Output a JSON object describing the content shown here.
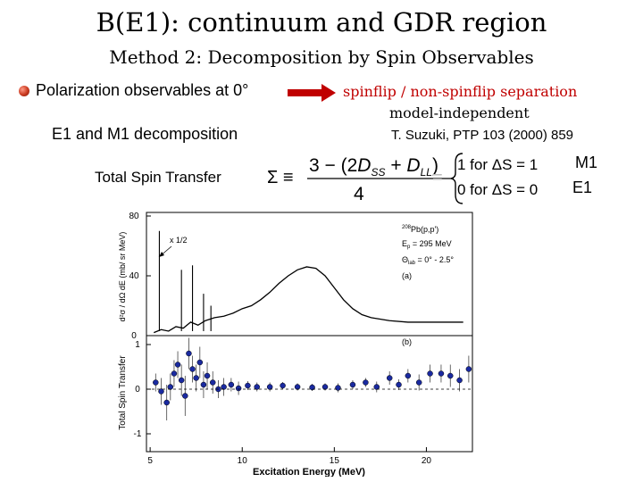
{
  "title": "B(E1): continuum and GDR region",
  "subtitle": "Method 2: Decomposition by Spin Observables",
  "bullet_text": "Polarization observables at 0°",
  "decomposition_text": "E1 and M1 decomposition",
  "separation_text": "spinflip / non-spinflip separation",
  "model_text": "model-independent",
  "reference": "T. Suzuki, PTP 103 (2000) 859",
  "formula": {
    "label": "Total Spin Transfer",
    "sigma": "Σ ≡",
    "numerator_prefix": "3 − (2",
    "dss": "D",
    "dss_sub": "SS",
    "plus": " + ",
    "dll": "D",
    "dll_sub": "LL",
    "numerator_suffix": ")",
    "denominator": "4",
    "equals": "=",
    "case1": "1 for ΔS = 1",
    "case2": "0 for ΔS = 0",
    "case1_label": "M1",
    "case2_label": "E1"
  },
  "plot": {
    "scale_note": "x 1/2",
    "legend_reaction_sup": "208",
    "legend_reaction": "Pb(p,p')",
    "legend_ep": "E",
    "legend_ep_sub": "p",
    "legend_ep_val": " = 295 MeV",
    "legend_theta": "Θ",
    "legend_theta_sub": "lab",
    "legend_theta_val": " = 0° - 2.5°",
    "panel_a": "(a)",
    "panel_b": "(b)",
    "xlabel": "Excitation Energy (MeV)",
    "ylabel_top": "d²σ / dΩ dE (mb/ sr MeV)",
    "ylabel_bottom": "Total Spin Transfer",
    "xticks": [
      "5",
      "10",
      "15",
      "20"
    ],
    "yticks_top": [
      "80",
      "40",
      "0"
    ],
    "yticks_bottom": [
      "1",
      "0",
      "-1"
    ],
    "cross_section": {
      "x": [
        5.2,
        5.6,
        6.0,
        6.4,
        6.8,
        7.2,
        7.6,
        8.0,
        8.5,
        9.0,
        9.5,
        10.0,
        10.5,
        11.0,
        11.5,
        12.0,
        12.5,
        13.0,
        13.5,
        14.0,
        14.5,
        15.0,
        15.5,
        16.0,
        16.5,
        17.0,
        18.0,
        19.0,
        20.0,
        21.0,
        22.0
      ],
      "y": [
        2,
        4,
        3,
        6,
        5,
        9,
        7,
        10,
        12,
        13,
        15,
        18,
        20,
        24,
        29,
        35,
        40,
        44,
        46,
        45,
        40,
        32,
        24,
        18,
        14,
        12,
        10,
        9,
        9,
        9,
        9
      ],
      "peaks": [
        {
          "x": 5.5,
          "y": 70
        },
        {
          "x": 6.7,
          "y": 44
        },
        {
          "x": 7.3,
          "y": 47
        },
        {
          "x": 7.9,
          "y": 28
        },
        {
          "x": 8.3,
          "y": 20
        }
      ],
      "xlim": [
        4.8,
        22.5
      ],
      "ylim": [
        0,
        80
      ]
    },
    "spin_transfer": {
      "x": [
        5.3,
        5.6,
        5.9,
        6.1,
        6.3,
        6.5,
        6.7,
        6.9,
        7.1,
        7.3,
        7.5,
        7.7,
        7.9,
        8.1,
        8.4,
        8.7,
        9.0,
        9.4,
        9.8,
        10.3,
        10.8,
        11.5,
        12.2,
        13.0,
        13.8,
        14.5,
        15.2,
        16.0,
        16.7,
        17.3,
        18.0,
        18.5,
        19.0,
        19.6,
        20.2,
        20.8,
        21.3,
        21.8,
        22.3
      ],
      "y": [
        0.15,
        -0.05,
        -0.3,
        0.05,
        0.35,
        0.55,
        0.2,
        -0.15,
        0.8,
        0.45,
        0.25,
        0.6,
        0.1,
        0.3,
        0.15,
        0.0,
        0.05,
        0.1,
        0.02,
        0.08,
        0.05,
        0.05,
        0.08,
        0.05,
        0.04,
        0.05,
        0.03,
        0.1,
        0.15,
        0.05,
        0.25,
        0.1,
        0.3,
        0.15,
        0.35,
        0.35,
        0.3,
        0.2,
        0.45
      ],
      "err": [
        0.2,
        0.3,
        0.4,
        0.3,
        0.3,
        0.3,
        0.35,
        0.45,
        0.35,
        0.3,
        0.3,
        0.35,
        0.3,
        0.3,
        0.25,
        0.2,
        0.2,
        0.15,
        0.15,
        0.1,
        0.1,
        0.1,
        0.08,
        0.08,
        0.08,
        0.08,
        0.1,
        0.1,
        0.1,
        0.12,
        0.15,
        0.12,
        0.15,
        0.18,
        0.2,
        0.2,
        0.25,
        0.25,
        0.3
      ],
      "xlim": [
        4.8,
        22.5
      ],
      "ylim": [
        -1.4,
        1.2
      ]
    }
  }
}
